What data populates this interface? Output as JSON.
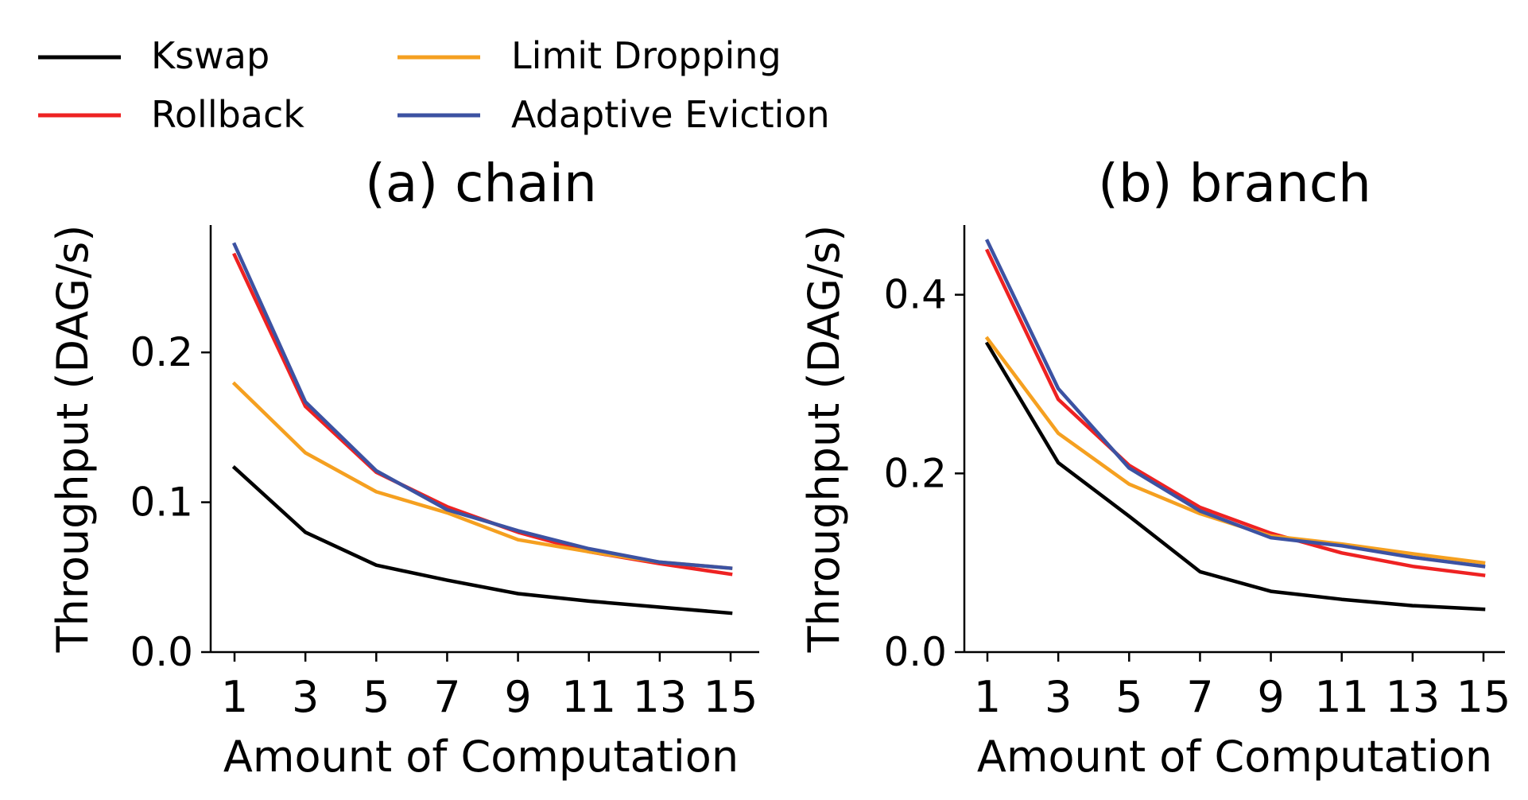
{
  "legend": {
    "placement": "top-left",
    "entries": [
      {
        "label": "Kswap",
        "color": "#000000"
      },
      {
        "label": "Rollback",
        "color": "#ee2222"
      },
      {
        "label": "Limit Dropping",
        "color": "#f5a020"
      },
      {
        "label": "Adaptive Eviction",
        "color": "#3c52a2"
      }
    ]
  },
  "chart_data": [
    {
      "type": "line",
      "title": "(a) chain",
      "xlabel": "Amount of Computation",
      "ylabel": "Throughput (DAG/s)",
      "x": [
        1,
        3,
        5,
        7,
        9,
        11,
        13,
        15
      ],
      "xticks": [
        "1",
        "3",
        "5",
        "7",
        "9",
        "11",
        "13",
        "15"
      ],
      "yticks": [
        0.0,
        0.1,
        0.2
      ],
      "ytick_labels": [
        "0.0",
        "0.1",
        "0.2"
      ],
      "ylim": [
        0,
        0.285
      ],
      "grid": false,
      "series": [
        {
          "name": "Kswap",
          "values": [
            0.123,
            0.08,
            0.058,
            0.048,
            0.039,
            0.034,
            0.03,
            0.026
          ]
        },
        {
          "name": "Rollback",
          "values": [
            0.265,
            0.164,
            0.12,
            0.097,
            0.08,
            0.067,
            0.059,
            0.052
          ]
        },
        {
          "name": "Limit Dropping",
          "values": [
            0.179,
            0.133,
            0.107,
            0.093,
            0.075,
            0.067,
            0.06,
            0.056
          ]
        },
        {
          "name": "Adaptive Eviction",
          "values": [
            0.272,
            0.167,
            0.121,
            0.095,
            0.081,
            0.069,
            0.06,
            0.056
          ]
        }
      ]
    },
    {
      "type": "line",
      "title": "(b) branch",
      "xlabel": "Amount of Computation",
      "ylabel": "Throughput (DAG/s)",
      "x": [
        1,
        3,
        5,
        7,
        9,
        11,
        13,
        15
      ],
      "xticks": [
        "1",
        "3",
        "5",
        "7",
        "9",
        "11",
        "13",
        "15"
      ],
      "yticks": [
        0.0,
        0.2,
        0.4
      ],
      "ytick_labels": [
        "0.0",
        "0.2",
        "0.4"
      ],
      "ylim": [
        0,
        0.478
      ],
      "grid": false,
      "series": [
        {
          "name": "Kswap",
          "values": [
            0.345,
            0.212,
            0.152,
            0.09,
            0.068,
            0.059,
            0.052,
            0.048
          ]
        },
        {
          "name": "Rollback",
          "values": [
            0.449,
            0.283,
            0.209,
            0.162,
            0.133,
            0.111,
            0.096,
            0.086
          ]
        },
        {
          "name": "Limit Dropping",
          "values": [
            0.351,
            0.245,
            0.188,
            0.155,
            0.13,
            0.121,
            0.11,
            0.1
          ]
        },
        {
          "name": "Adaptive Eviction",
          "values": [
            0.46,
            0.295,
            0.206,
            0.158,
            0.128,
            0.119,
            0.106,
            0.096
          ]
        }
      ]
    }
  ]
}
